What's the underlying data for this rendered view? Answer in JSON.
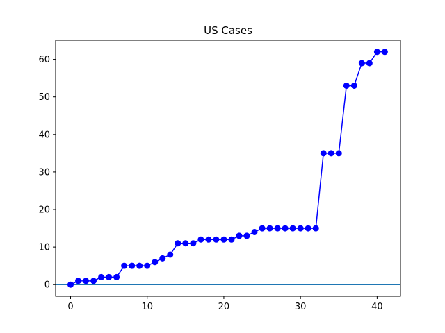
{
  "chart_data": {
    "type": "line",
    "title": "US Cases",
    "xlabel": "",
    "ylabel": "",
    "xlim": [
      -1.95,
      43.05
    ],
    "ylim": [
      -3.1,
      65.1
    ],
    "xticks": [
      0,
      10,
      20,
      30,
      40
    ],
    "yticks": [
      0,
      10,
      20,
      30,
      40,
      50,
      60
    ],
    "grid": false,
    "legend": "none",
    "series": [
      {
        "color": "#0000ff",
        "marker": "circle",
        "x": [
          0,
          1,
          2,
          3,
          4,
          5,
          6,
          7,
          8,
          9,
          10,
          11,
          12,
          13,
          14,
          15,
          16,
          17,
          18,
          19,
          20,
          21,
          22,
          23,
          24,
          25,
          26,
          27,
          28,
          29,
          30,
          31,
          32,
          33,
          34,
          35,
          36,
          37,
          38,
          39,
          40,
          41
        ],
        "y": [
          0,
          1,
          1,
          1,
          2,
          2,
          2,
          5,
          5,
          5,
          5,
          6,
          7,
          8,
          11,
          11,
          11,
          12,
          12,
          12,
          12,
          12,
          13,
          13,
          14,
          15,
          15,
          15,
          15,
          15,
          15,
          15,
          15,
          35,
          35,
          35,
          53,
          53,
          59,
          59,
          62,
          62
        ]
      }
    ],
    "reference_lines": [
      {
        "orientation": "horizontal",
        "y": 0,
        "color": "#1f77b4"
      }
    ]
  }
}
